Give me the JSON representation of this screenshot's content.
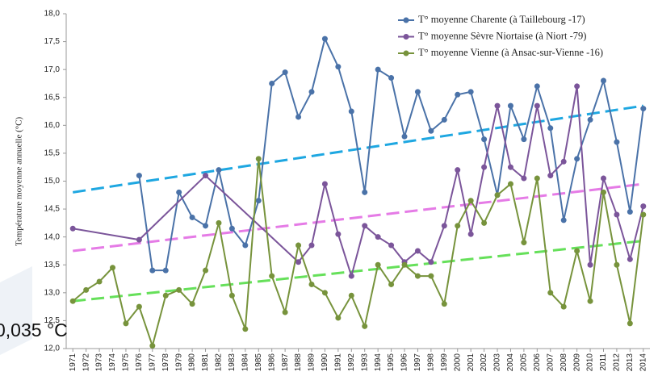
{
  "chart_data": {
    "type": "line",
    "y_label": "Température moyenne annuelle  (°C)",
    "annotation": "0,035 °C",
    "xlim": [
      1970.5,
      2014.5
    ],
    "xticks": [
      1971,
      1972,
      1973,
      1974,
      1975,
      1976,
      1977,
      1978,
      1979,
      1980,
      1981,
      1982,
      1983,
      1984,
      1985,
      1986,
      1987,
      1988,
      1989,
      1990,
      1991,
      1992,
      1993,
      1994,
      1995,
      1996,
      1997,
      1998,
      1999,
      2000,
      2001,
      2002,
      2003,
      2004,
      2005,
      2006,
      2007,
      2008,
      2009,
      2010,
      2011,
      2012,
      2013,
      2014
    ],
    "ylim": [
      12,
      18
    ],
    "yticks": [
      {
        "value": 12,
        "label": "12,0"
      },
      {
        "value": 12.5,
        "label": "12,5"
      },
      {
        "value": 13,
        "label": "13,0"
      },
      {
        "value": 13.5,
        "label": "13,5"
      },
      {
        "value": 14,
        "label": "14,0"
      },
      {
        "value": 14.5,
        "label": "14,5"
      },
      {
        "value": 15,
        "label": "15,0"
      },
      {
        "value": 15.5,
        "label": "15,5"
      },
      {
        "value": 16,
        "label": "16,0"
      },
      {
        "value": 16.5,
        "label": "16,5"
      },
      {
        "value": 17,
        "label": "17,0"
      },
      {
        "value": 17.5,
        "label": "17,5"
      },
      {
        "value": 18,
        "label": "18,0"
      }
    ],
    "grid": false,
    "legend": "upper right",
    "series": [
      {
        "name": "T° moyenne Charente (à Taillebourg -17)",
        "color": "#4a72a8",
        "x": [
          1976,
          1977,
          1978,
          1979,
          1980,
          1981,
          1982,
          1983,
          1984,
          1985,
          1986,
          1987,
          1988,
          1989,
          1990,
          1991,
          1992,
          1993,
          1994,
          1995,
          1996,
          1997,
          1998,
          1999,
          2000,
          2001,
          2002,
          2003,
          2004,
          2005,
          2006,
          2007,
          2008,
          2009,
          2010,
          2011,
          2012,
          2013,
          2014
        ],
        "values": [
          15.1,
          13.4,
          13.4,
          14.8,
          14.35,
          14.2,
          15.2,
          14.15,
          13.85,
          14.65,
          16.75,
          16.95,
          16.15,
          16.6,
          17.55,
          17.05,
          16.25,
          14.8,
          17.0,
          16.85,
          15.8,
          16.6,
          15.9,
          16.1,
          16.55,
          16.6,
          15.75,
          14.75,
          16.35,
          15.75,
          16.7,
          15.95,
          14.3,
          15.4,
          16.1,
          16.8,
          15.7,
          14.45,
          16.3
        ]
      },
      {
        "name": "T° moyenne Sèvre Niortaise (à Niort -79)",
        "color": "#7b559a",
        "x": [
          1971,
          1976,
          1981,
          1988,
          1989,
          1990,
          1991,
          1992,
          1993,
          1994,
          1995,
          1996,
          1997,
          1998,
          1999,
          2000,
          2001,
          2002,
          2003,
          2004,
          2005,
          2006,
          2007,
          2008,
          2009,
          2010,
          2011,
          2012,
          2013,
          2014
        ],
        "values": [
          14.15,
          13.95,
          15.1,
          13.55,
          13.85,
          14.95,
          14.05,
          13.3,
          14.2,
          14.0,
          13.85,
          13.55,
          13.75,
          13.55,
          14.2,
          15.2,
          14.05,
          15.25,
          16.35,
          15.25,
          15.05,
          16.35,
          15.1,
          15.35,
          16.7,
          13.5,
          15.05,
          14.4,
          13.6,
          14.55
        ]
      },
      {
        "name": "T° moyenne Vienne (à Ansac-sur-Vienne -16)",
        "color": "#77933c",
        "x": [
          1971,
          1972,
          1973,
          1974,
          1975,
          1976,
          1977,
          1978,
          1979,
          1980,
          1981,
          1982,
          1983,
          1984,
          1985,
          1986,
          1987,
          1988,
          1989,
          1990,
          1991,
          1992,
          1993,
          1994,
          1995,
          1996,
          1997,
          1998,
          1999,
          2000,
          2001,
          2002,
          2003,
          2004,
          2005,
          2006,
          2007,
          2008,
          2009,
          2010,
          2011,
          2012,
          2013,
          2014
        ],
        "values": [
          12.85,
          13.05,
          13.2,
          13.45,
          12.45,
          12.75,
          12.05,
          12.95,
          13.05,
          12.8,
          13.4,
          14.25,
          12.95,
          12.35,
          15.4,
          13.3,
          12.65,
          13.85,
          13.15,
          13.0,
          12.55,
          12.95,
          12.4,
          13.5,
          13.15,
          13.5,
          13.3,
          13.3,
          12.8,
          14.2,
          14.65,
          14.25,
          14.75,
          14.95,
          13.9,
          15.05,
          13.0,
          12.75,
          13.75,
          12.85,
          14.8,
          13.5,
          12.45,
          14.4
        ]
      }
    ],
    "trendlines": [
      {
        "color": "#1ea7e1",
        "x": [
          1971,
          2014
        ],
        "values": [
          14.8,
          16.35
        ]
      },
      {
        "color": "#e57be6",
        "x": [
          1971,
          2014
        ],
        "values": [
          13.75,
          14.95
        ]
      },
      {
        "color": "#66e05a",
        "x": [
          1971,
          2014
        ],
        "values": [
          12.85,
          13.93
        ]
      }
    ]
  }
}
